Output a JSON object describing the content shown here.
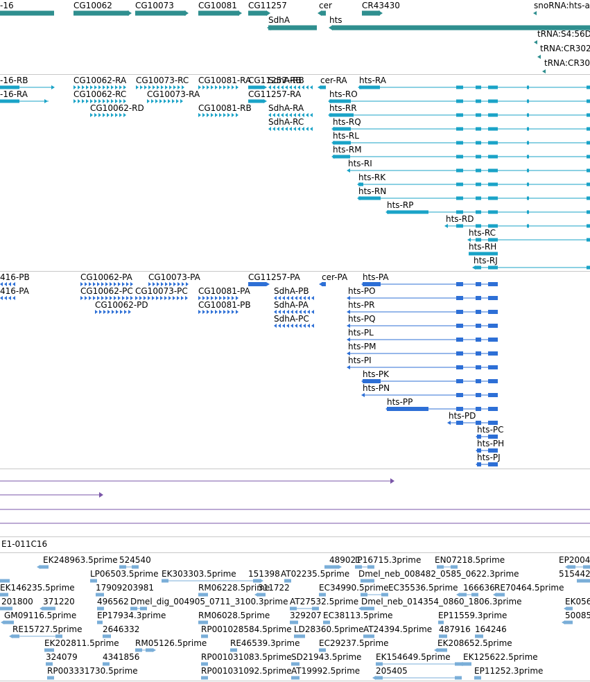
{
  "colors": {
    "gene": "#2f8f8f",
    "mrna": "#1aa3c7",
    "cds": "#2d6fd6",
    "purple": "#7a56a8",
    "est": "#7aaed8",
    "divider": "#c8c8c8"
  },
  "tracks": {
    "genes": {
      "items": [
        {
          "label": "-16",
          "bar": [
            0,
            78
          ]
        },
        {
          "label": "CG10062",
          "bar": [
            106,
            186
          ],
          "arrow": "right"
        },
        {
          "label": "CG10073",
          "bar": [
            195,
            268
          ],
          "arrow": "right"
        },
        {
          "label": "CG10081",
          "bar": [
            286,
            345
          ],
          "arrow": "right"
        },
        {
          "label": "CG11257",
          "bar": [
            358,
            390
          ],
          "arrow": "right"
        },
        {
          "label": "cer",
          "bar": [
            460,
            470
          ],
          "arrow": "left"
        },
        {
          "label": "CR43430",
          "bar": [
            522,
            548
          ],
          "arrow": "right"
        },
        {
          "label": "snoRNA:hts-a",
          "bar": [
            770,
            774
          ],
          "arrow": "left"
        }
      ],
      "items_row2": [
        {
          "label": "SdhA",
          "bar": [
            387,
            457
          ]
        },
        {
          "label": "hts",
          "bar": [
            475,
            851
          ]
        }
      ],
      "trnas": [
        "tRNA:S4:56D",
        "tRNA:CR302",
        "tRNA:CR30"
      ]
    },
    "transcripts": [
      "-16-RB",
      "-16-RA",
      "CG10062-RA",
      "CG10062-RC",
      "CG10062-RD",
      "CG10073-RC",
      "CG10073-RA",
      "CG10081-RA",
      "CG10081-RB",
      "CG11257-RB",
      "CG11257-RA",
      "SdhA-RB",
      "SdhA-RA",
      "SdhA-RC",
      "cer-RA",
      "hts-RA",
      "hts-RO",
      "hts-RR",
      "hts-RQ",
      "hts-RL",
      "hts-RM",
      "hts-RI",
      "hts-RK",
      "hts-RN",
      "hts-RP",
      "hts-RD",
      "hts-RC",
      "hts-RH",
      "hts-RJ"
    ],
    "proteins": [
      "416-PB",
      "416-PA",
      "CG10062-PA",
      "CG10062-PC",
      "CG10062-PD",
      "CG10073-PA",
      "CG10073-PC",
      "CG10081-PA",
      "CG10081-PB",
      "CG11257-PA",
      "SdhA-PB",
      "SdhA-PA",
      "SdhA-PC",
      "cer-PA",
      "hts-PA",
      "hts-PO",
      "hts-PR",
      "hts-PQ",
      "hts-PL",
      "hts-PM",
      "hts-PI",
      "hts-PK",
      "hts-PN",
      "hts-PP",
      "hts-PD",
      "hts-PC",
      "hts-PH",
      "hts-PJ"
    ],
    "insertion_label": "E1-011C16",
    "ests": [
      "EK248963.5prime",
      "524540",
      "489021",
      "IP16715.3prime",
      "EN07218.5prime",
      "EP2004",
      "LP06503.5prime",
      "EK303303.5prime",
      "151398",
      "AT02235.5prime",
      "Dmel_neb_008482_0585_0622.3prime",
      "515442",
      "EK146235.5prime",
      "17909203981",
      "RM06228.5prime",
      "311722",
      "EC34990.5prime",
      "EC35536.5prime",
      "166636",
      "RE70464.5prime",
      "201800",
      "371220",
      "496562",
      "Dmel_dig_004905_0711_3100.3prime",
      "AT27532.5prime",
      "Dmel_neb_014354_0860_1806.3prime",
      "EK056",
      "GM09116.5prime",
      "EP17934.3prime",
      "RM06028.5prime",
      "329207",
      "EC38113.5prime",
      "EP11559.3prime",
      "50085",
      "RE15727.5prime",
      "2646332",
      "RP001028584.5prime",
      "LD28360.5prime",
      "AT24394.5prime",
      "487916",
      "164246",
      "EK202811.5prime",
      "RM05126.5prime",
      "RE46539.3prime",
      "EC29237.5prime",
      "EK208652.5prime",
      "324079",
      "4341856",
      "RP001031083.5prime",
      "SD21943.5prime",
      "EK154649.5prime",
      "EK125622.5prime",
      "RP003331730.5prime",
      "RP001031092.5prime",
      "AT19992.5prime",
      "205405",
      "EP11252.3prime"
    ]
  }
}
